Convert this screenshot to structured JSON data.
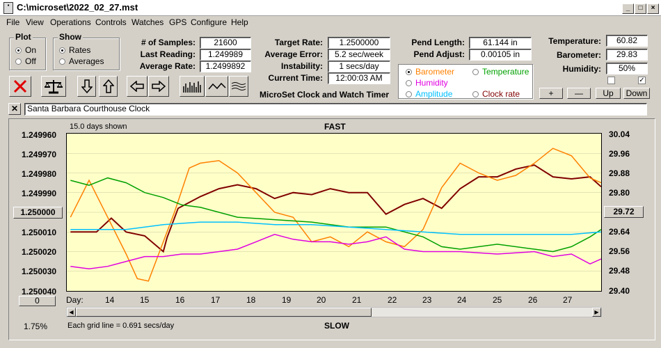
{
  "window": {
    "title": "C:\\microset\\2022_02_27.mst"
  },
  "menu": [
    "File",
    "View",
    "Operations",
    "Controls",
    "Watches",
    "GPS",
    "Configure",
    "Help"
  ],
  "plot_group": {
    "caption": "Plot",
    "on": "On",
    "off": "Off",
    "selected": "On"
  },
  "show_group": {
    "caption": "Show",
    "rates": "Rates",
    "averages": "Averages",
    "selected": "Rates"
  },
  "stats": {
    "samples_label": "# of Samples:",
    "samples": "21600",
    "last_label": "Last Reading:",
    "last": "1.249989",
    "avg_rate_label": "Average Rate:",
    "avg_rate": "1.2499892",
    "target_label": "Target Rate:",
    "target": "1.2500000",
    "avg_err_label": "Average Error:",
    "avg_err": "5.2 sec/week",
    "instab_label": "Instability:",
    "instab": "1 secs/day",
    "time_label": "Current Time:",
    "time": "12:00:03 AM",
    "pend_len_label": "Pend Length:",
    "pend_len": "61.144 in",
    "pend_adj_label": "Pend Adjust:",
    "pend_adj": "0.00105 in",
    "temp_label": "Temperature:",
    "temp": "60.82",
    "baro_label": "Barometer:",
    "baro": "29.83",
    "hum_label": "Humidity:",
    "hum": "50%"
  },
  "app_label": "MicroSet Clock and Watch Timer",
  "series_select": {
    "barometer": "Barometer",
    "temperature": "Temperature",
    "humidity": "Humidity",
    "amplitude": "Amplitude",
    "clock_rate": "Clock rate",
    "selected": "Barometer",
    "colors": {
      "barometer": "#ff8000",
      "temperature": "#00a000",
      "humidity": "#e000e0",
      "amplitude": "#00c0ff",
      "clock_rate": "#800000"
    }
  },
  "adjust_buttons": {
    "plus": "+",
    "minus": "—",
    "up": "Up",
    "down": "Down"
  },
  "checkboxes": {
    "left_checked": false,
    "right_checked": true
  },
  "clock_name": "Santa Barbara Courthouse Clock",
  "graph": {
    "days_shown": "15.0 days shown",
    "fast": "FAST",
    "slow": "SLOW",
    "left_ticks": [
      "1.249960",
      "1.249970",
      "1.249980",
      "1.249990",
      "1.250000",
      "1.250010",
      "1.250020",
      "1.250030",
      "1.250040"
    ],
    "right_ticks": [
      "30.04",
      "29.96",
      "29.88",
      "29.80",
      "29.72",
      "29.64",
      "29.56",
      "29.48",
      "29.40"
    ],
    "center_left": "1.250000",
    "center_right": "29.72",
    "day_label": "Day:",
    "days": [
      "14",
      "15",
      "16",
      "17",
      "18",
      "19",
      "20",
      "21",
      "22",
      "23",
      "24",
      "25",
      "26",
      "27"
    ],
    "gridline_note": "Each grid line = 0.691 secs/day",
    "zero_button": "0",
    "percent": "1.75%"
  },
  "chart_data": {
    "type": "line",
    "x_range": [
      13.4,
      27.8
    ],
    "left_axis_range": [
      1.24996,
      1.25004
    ],
    "right_axis_range": [
      29.4,
      30.04
    ],
    "series": [
      {
        "name": "Clock rate",
        "color": "#800000",
        "x": [
          13.5,
          14.2,
          14.6,
          15.0,
          15.5,
          16.0,
          16.1,
          16.4,
          17.0,
          17.5,
          18.0,
          18.5,
          19.0,
          19.5,
          20.0,
          20.5,
          21.0,
          21.5,
          22.0,
          22.5,
          23.0,
          23.5,
          24.0,
          24.5,
          25.0,
          25.5,
          26.0,
          26.5,
          27.0,
          27.5,
          27.8
        ],
        "values": [
          1.25001,
          1.25001,
          1.250003,
          1.25001,
          1.250012,
          1.25002,
          1.250013,
          1.249998,
          1.249992,
          1.249988,
          1.249986,
          1.249988,
          1.249993,
          1.24999,
          1.249991,
          1.249988,
          1.24999,
          1.24999,
          1.250001,
          1.249996,
          1.249993,
          1.249998,
          1.249988,
          1.249982,
          1.249982,
          1.249978,
          1.249976,
          1.249982,
          1.249983,
          1.249982,
          1.249987
        ]
      },
      {
        "name": "Barometer",
        "color": "#ff8000",
        "x": [
          13.5,
          14.0,
          14.5,
          15.0,
          15.3,
          15.6,
          16.0,
          16.3,
          16.7,
          17.0,
          17.5,
          18.0,
          18.5,
          19.0,
          19.5,
          20.0,
          20.5,
          21.0,
          21.5,
          22.0,
          22.5,
          23.0,
          23.5,
          24.0,
          24.5,
          25.0,
          25.5,
          26.0,
          26.5,
          27.0,
          27.5,
          27.8
        ],
        "values": [
          29.7,
          29.85,
          29.7,
          29.55,
          29.45,
          29.44,
          29.6,
          29.72,
          29.9,
          29.92,
          29.93,
          29.88,
          29.8,
          29.72,
          29.7,
          29.6,
          29.62,
          29.58,
          29.64,
          29.6,
          29.58,
          29.65,
          29.82,
          29.92,
          29.88,
          29.85,
          29.87,
          29.92,
          29.98,
          29.95,
          29.86,
          29.84
        ]
      },
      {
        "name": "Temperature",
        "color": "#00a000",
        "x": [
          13.5,
          14.0,
          14.5,
          15.0,
          15.5,
          16.0,
          16.5,
          17.0,
          18.0,
          19.0,
          20.0,
          21.0,
          22.0,
          23.0,
          23.5,
          24.0,
          25.0,
          26.0,
          26.5,
          27.0,
          27.5,
          27.8
        ],
        "values": [
          29.85,
          29.83,
          29.86,
          29.84,
          29.8,
          29.78,
          29.75,
          29.74,
          29.7,
          29.69,
          29.68,
          29.66,
          29.66,
          29.62,
          29.58,
          29.57,
          29.59,
          29.57,
          29.56,
          29.58,
          29.62,
          29.65
        ]
      },
      {
        "name": "Amplitude",
        "color": "#00c0ff",
        "x": [
          13.5,
          15.0,
          16.0,
          17.0,
          18.0,
          19.0,
          20.0,
          21.0,
          22.0,
          23.0,
          24.0,
          25.0,
          26.0,
          27.0,
          27.8
        ],
        "values": [
          29.65,
          29.65,
          29.67,
          29.68,
          29.68,
          29.67,
          29.67,
          29.66,
          29.65,
          29.64,
          29.63,
          29.63,
          29.63,
          29.63,
          29.64
        ]
      },
      {
        "name": "Humidity",
        "color": "#e000e0",
        "x": [
          13.5,
          14.0,
          14.5,
          15.0,
          15.5,
          16.0,
          16.5,
          17.0,
          17.5,
          18.0,
          18.5,
          19.0,
          19.5,
          20.0,
          20.5,
          21.0,
          21.5,
          22.0,
          22.5,
          23.0,
          23.5,
          24.0,
          25.0,
          26.0,
          26.5,
          27.0,
          27.5,
          27.8
        ],
        "values": [
          29.5,
          29.49,
          29.5,
          29.52,
          29.54,
          29.54,
          29.55,
          29.55,
          29.56,
          29.57,
          29.6,
          29.63,
          29.61,
          29.6,
          29.6,
          29.59,
          29.6,
          29.62,
          29.57,
          29.56,
          29.56,
          29.56,
          29.55,
          29.56,
          29.54,
          29.55,
          29.51,
          29.53
        ]
      }
    ]
  }
}
